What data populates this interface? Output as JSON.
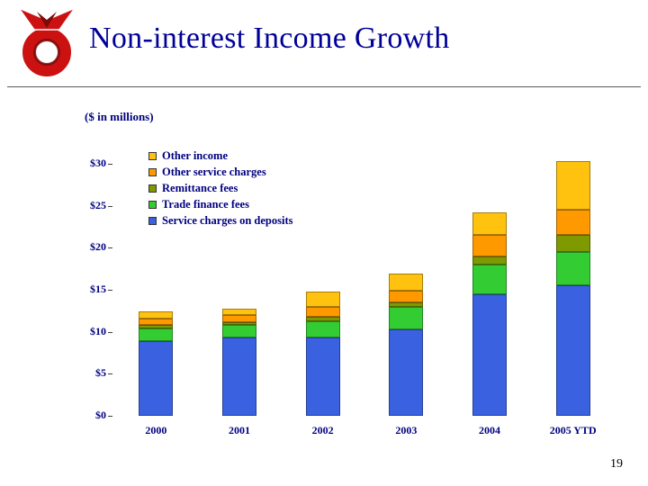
{
  "slide": {
    "title": "Non-interest Income Growth",
    "units_note": "($ in millions)",
    "page_number": "19"
  },
  "logo": {
    "name": "red-emblem-logo",
    "primary_color": "#CC1111",
    "shadow_color": "#7A0C0C"
  },
  "chart_data": {
    "type": "bar",
    "stacked": true,
    "title": "",
    "xlabel": "",
    "ylabel": "$ in millions",
    "categories": [
      "2000",
      "2001",
      "2002",
      "2003",
      "2004",
      "2005 YTD"
    ],
    "series": [
      {
        "name": "Service charges on deposits",
        "color": "#3A62E0",
        "values": [
          8.9,
          9.3,
          9.3,
          10.3,
          14.5,
          15.5
        ]
      },
      {
        "name": "Trade finance fees",
        "color": "#33CC33",
        "values": [
          1.5,
          1.5,
          2.0,
          2.7,
          3.5,
          4.0
        ]
      },
      {
        "name": "Remittance fees",
        "color": "#7F9900",
        "values": [
          0.4,
          0.4,
          0.5,
          0.5,
          1.0,
          2.0
        ]
      },
      {
        "name": "Other service charges",
        "color": "#FF9900",
        "values": [
          0.8,
          0.8,
          1.2,
          1.4,
          2.5,
          3.0
        ]
      },
      {
        "name": "Other income",
        "color": "#FFC20E",
        "values": [
          0.8,
          0.8,
          1.8,
          2.0,
          2.7,
          5.8
        ]
      }
    ],
    "totals": [
      12.4,
      12.8,
      14.8,
      16.9,
      24.2,
      30.3
    ],
    "legend": {
      "position": "top-left-inside",
      "order_top_to_bottom": [
        "Other income",
        "Other service charges",
        "Remittance fees",
        "Trade finance fees",
        "Service charges on deposits"
      ]
    },
    "y_ticks": [
      "$30",
      "$25",
      "$20",
      "$15",
      "$10",
      "$5",
      "$0"
    ],
    "ylim": [
      0,
      30
    ],
    "grid": false
  }
}
